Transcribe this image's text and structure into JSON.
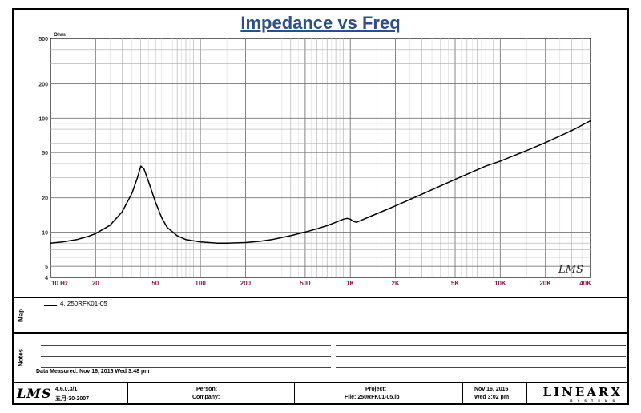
{
  "chart_data": {
    "type": "line",
    "title": "Impedance vs Freq",
    "ylabel_unit": "Ohm",
    "x_scale": "log",
    "y_scale": "log",
    "xlim": [
      10,
      40000
    ],
    "ylim": [
      4,
      500
    ],
    "x_ticks": [
      {
        "v": 10,
        "label": "10  Hz"
      },
      {
        "v": 20,
        "label": "20"
      },
      {
        "v": 50,
        "label": "50"
      },
      {
        "v": 100,
        "label": "100"
      },
      {
        "v": 200,
        "label": "200"
      },
      {
        "v": 500,
        "label": "500"
      },
      {
        "v": 1000,
        "label": "1K"
      },
      {
        "v": 2000,
        "label": "2K"
      },
      {
        "v": 5000,
        "label": "5K"
      },
      {
        "v": 10000,
        "label": "10K"
      },
      {
        "v": 20000,
        "label": "20K"
      },
      {
        "v": 40000,
        "label": "40K"
      }
    ],
    "y_ticks": [
      {
        "v": 500,
        "label": "500"
      },
      {
        "v": 200,
        "label": "200"
      },
      {
        "v": 100,
        "label": "100"
      },
      {
        "v": 50,
        "label": "50"
      },
      {
        "v": 20,
        "label": "20"
      },
      {
        "v": 10,
        "label": "10"
      },
      {
        "v": 5,
        "label": "5"
      },
      {
        "v": 4,
        "label": "4"
      }
    ],
    "grid": true,
    "series": [
      {
        "name": "4. 250RFK01-05",
        "x": [
          10,
          12,
          15,
          18,
          20,
          25,
          30,
          35,
          38,
          40,
          42,
          45,
          50,
          55,
          60,
          70,
          80,
          100,
          130,
          150,
          200,
          250,
          300,
          400,
          500,
          600,
          700,
          800,
          900,
          950,
          1000,
          1050,
          1100,
          1200,
          1500,
          2000,
          3000,
          5000,
          8000,
          10000,
          15000,
          20000,
          30000,
          40000
        ],
        "y": [
          8.0,
          8.2,
          8.6,
          9.2,
          9.7,
          11.5,
          15.0,
          22.0,
          30.0,
          38.0,
          36.0,
          28.0,
          18.5,
          13.5,
          11.0,
          9.3,
          8.6,
          8.2,
          8.0,
          8.0,
          8.1,
          8.3,
          8.6,
          9.3,
          10.0,
          10.7,
          11.4,
          12.2,
          13.0,
          13.2,
          13.0,
          12.4,
          12.2,
          12.8,
          14.5,
          17.0,
          21.5,
          29.0,
          38.0,
          42.0,
          52.0,
          61.0,
          78.0,
          95.0
        ]
      }
    ],
    "watermark": "LMS"
  },
  "map_panel": {
    "tab_label": "Map",
    "legend_entry": "4. 250RFK01-05"
  },
  "notes_panel": {
    "tab_label": "Notes",
    "measured_text": "Data Measured: Nov 16, 2016  Wed  3:48 pm"
  },
  "footer": {
    "logo": "LMS",
    "version": "4.6.0.3/1",
    "version_date": "五月-30-2007",
    "person_label": "Person:",
    "company_label": "Company:",
    "project_label": "Project:",
    "file_label": "File: 250RFK01-05.lb",
    "date": "Nov 16, 2016",
    "time": "Wed  3:02 pm",
    "brand": "LINEARX",
    "brand_sub": "SYSTEMS"
  }
}
